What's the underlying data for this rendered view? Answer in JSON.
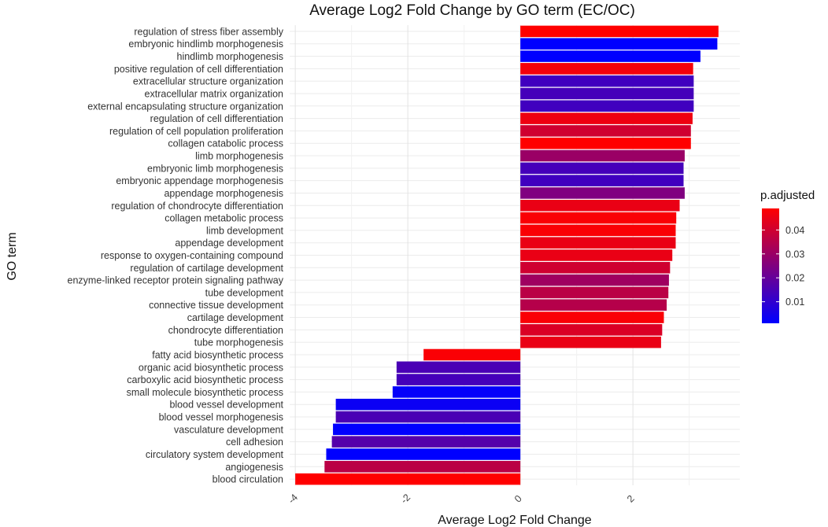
{
  "chart_data": {
    "type": "bar",
    "orientation": "horizontal",
    "title": "Average Log2 Fold Change by GO term (EC/OC)",
    "xlabel": "Average Log2 Fold Change",
    "ylabel": "GO term",
    "xlim": [
      -4.1,
      3.9
    ],
    "x_ticks": [
      -4,
      -2,
      0,
      2
    ],
    "x_tick_labels": [
      "-4",
      "-2",
      "0",
      "2"
    ],
    "grid": true,
    "categories": [
      "regulation of stress fiber assembly",
      "embryonic hindlimb morphogenesis",
      "hindlimb morphogenesis",
      "positive regulation of cell differentiation",
      "extracellular structure organization",
      "extracellular matrix organization",
      "external encapsulating structure organization",
      "regulation of cell differentiation",
      "regulation of cell population proliferation",
      "collagen catabolic process",
      "limb morphogenesis",
      "embryonic limb morphogenesis",
      "embryonic appendage morphogenesis",
      "appendage morphogenesis",
      "regulation of chondrocyte differentiation",
      "collagen metabolic process",
      "limb development",
      "appendage development",
      "response to oxygen-containing compound",
      "regulation of cartilage development",
      "enzyme-linked receptor protein signaling pathway",
      "tube development",
      "connective tissue development",
      "cartilage development",
      "chondrocyte differentiation",
      "tube morphogenesis",
      "fatty acid biosynthetic process",
      "organic acid biosynthetic process",
      "carboxylic acid biosynthetic process",
      "small molecule biosynthetic process",
      "blood vessel development",
      "blood vessel morphogenesis",
      "vasculature development",
      "cell adhesion",
      "circulatory system development",
      "angiogenesis",
      "blood circulation"
    ],
    "values": [
      3.52,
      3.5,
      3.2,
      3.07,
      3.08,
      3.08,
      3.08,
      3.06,
      3.03,
      3.03,
      2.92,
      2.9,
      2.9,
      2.92,
      2.83,
      2.77,
      2.76,
      2.76,
      2.7,
      2.66,
      2.64,
      2.63,
      2.6,
      2.55,
      2.52,
      2.5,
      -1.72,
      -2.2,
      -2.2,
      -2.27,
      -3.28,
      -3.28,
      -3.33,
      -3.35,
      -3.45,
      -3.48,
      -4.0
    ],
    "p_adjusted": [
      0.049,
      0.001,
      0.001,
      0.047,
      0.013,
      0.014,
      0.013,
      0.046,
      0.04,
      0.049,
      0.03,
      0.014,
      0.013,
      0.025,
      0.045,
      0.048,
      0.048,
      0.045,
      0.045,
      0.04,
      0.031,
      0.036,
      0.035,
      0.048,
      0.042,
      0.045,
      0.048,
      0.015,
      0.014,
      0.002,
      0.003,
      0.015,
      0.001,
      0.017,
      0.001,
      0.036,
      0.049
    ],
    "legend": {
      "title": "p.adjusted",
      "type": "colorbar",
      "position": "right",
      "min": 0.001,
      "max": 0.049,
      "ticks": [
        0.01,
        0.02,
        0.03,
        0.04
      ],
      "tick_labels": [
        "0.01",
        "0.02",
        "0.03",
        "0.04"
      ],
      "color_low": "#0000ff",
      "color_high": "#ff0000"
    }
  }
}
